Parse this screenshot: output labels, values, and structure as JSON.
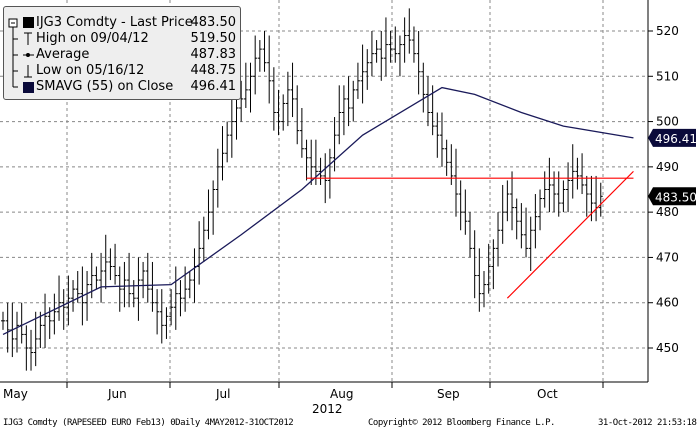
{
  "legend": {
    "title": "IJG3 Comdty - Last Price",
    "title_value": "483.50",
    "high_label": "High on 09/04/12",
    "high_value": "519.50",
    "avg_label": "Average",
    "avg_value": "487.83",
    "low_label": "Low on 05/16/12",
    "low_value": "448.75",
    "sma_label": "SMAVG (55) on Close",
    "sma_value": "496.41"
  },
  "footer": {
    "left": "IJG3 Comdty (RAPESEED  EURO   Feb13) 0Daily 4MAY2012-31OCT2012",
    "center": "Copyright© 2012 Bloomberg Finance L.P.",
    "right": "31-Oct-2012 21:53:18"
  },
  "chart_data": {
    "type": "ohlc",
    "title": "IJG3 Comdty - Last Price",
    "xlabel": "2012",
    "x_ticks": [
      "May",
      "Jun",
      "Jul",
      "Aug",
      "Sep",
      "Oct"
    ],
    "month_start_index": [
      0,
      20,
      41,
      63,
      86,
      106
    ],
    "y_ticks": [
      450,
      460,
      470,
      480,
      490,
      500,
      510,
      520
    ],
    "ylim": [
      445,
      528
    ],
    "grid": true,
    "closes": [
      456,
      454,
      452,
      455,
      453,
      450,
      449,
      452,
      455,
      457,
      456,
      458,
      460,
      459,
      461,
      463,
      462,
      460,
      464,
      466,
      465,
      467,
      469,
      468,
      466,
      463,
      465,
      462,
      461,
      465,
      467,
      463,
      460,
      458,
      455,
      457,
      459,
      462,
      461,
      463,
      465,
      468,
      472,
      476,
      480,
      485,
      490,
      493,
      497,
      500,
      503,
      505,
      507,
      510,
      514,
      516,
      513,
      509,
      502,
      500,
      504,
      507,
      505,
      498,
      494,
      492,
      490,
      489,
      488,
      487,
      492,
      497,
      502,
      505,
      503,
      507,
      509,
      511,
      513,
      515,
      516,
      514,
      517,
      516,
      515,
      517,
      519,
      518,
      515,
      511,
      506,
      502,
      499,
      497,
      494,
      491,
      488,
      484,
      480,
      478,
      472,
      466,
      462,
      464,
      468,
      472,
      476,
      480,
      484,
      481,
      478,
      475,
      472,
      476,
      479,
      483,
      485,
      486,
      484,
      482,
      485,
      487,
      489,
      488,
      486,
      484,
      482,
      481,
      483.5
    ],
    "sma_points": [
      [
        0,
        453
      ],
      [
        21,
        463.5
      ],
      [
        36,
        464
      ],
      [
        51,
        475
      ],
      [
        64,
        485
      ],
      [
        77,
        497
      ],
      [
        94,
        507.5
      ],
      [
        101,
        506
      ],
      [
        111,
        502
      ],
      [
        120,
        499
      ],
      [
        135,
        496.4
      ]
    ],
    "resistance_line": {
      "from": [
        65,
        487.5
      ],
      "to": [
        135,
        487.5
      ],
      "color": "#ff0000"
    },
    "support_line": {
      "from": [
        108,
        461
      ],
      "to": [
        135,
        489
      ],
      "color": "#ff0000"
    },
    "last_price": "483.50",
    "last_price_value": 483.5,
    "sma_last": "496.41",
    "sma_last_value": 496.41,
    "colors": {
      "bars": "#000000",
      "sma": "#1a1a5a",
      "trend": "#ff0000",
      "last_tag": "#000000",
      "sma_tag": "#0a0a3a"
    }
  }
}
